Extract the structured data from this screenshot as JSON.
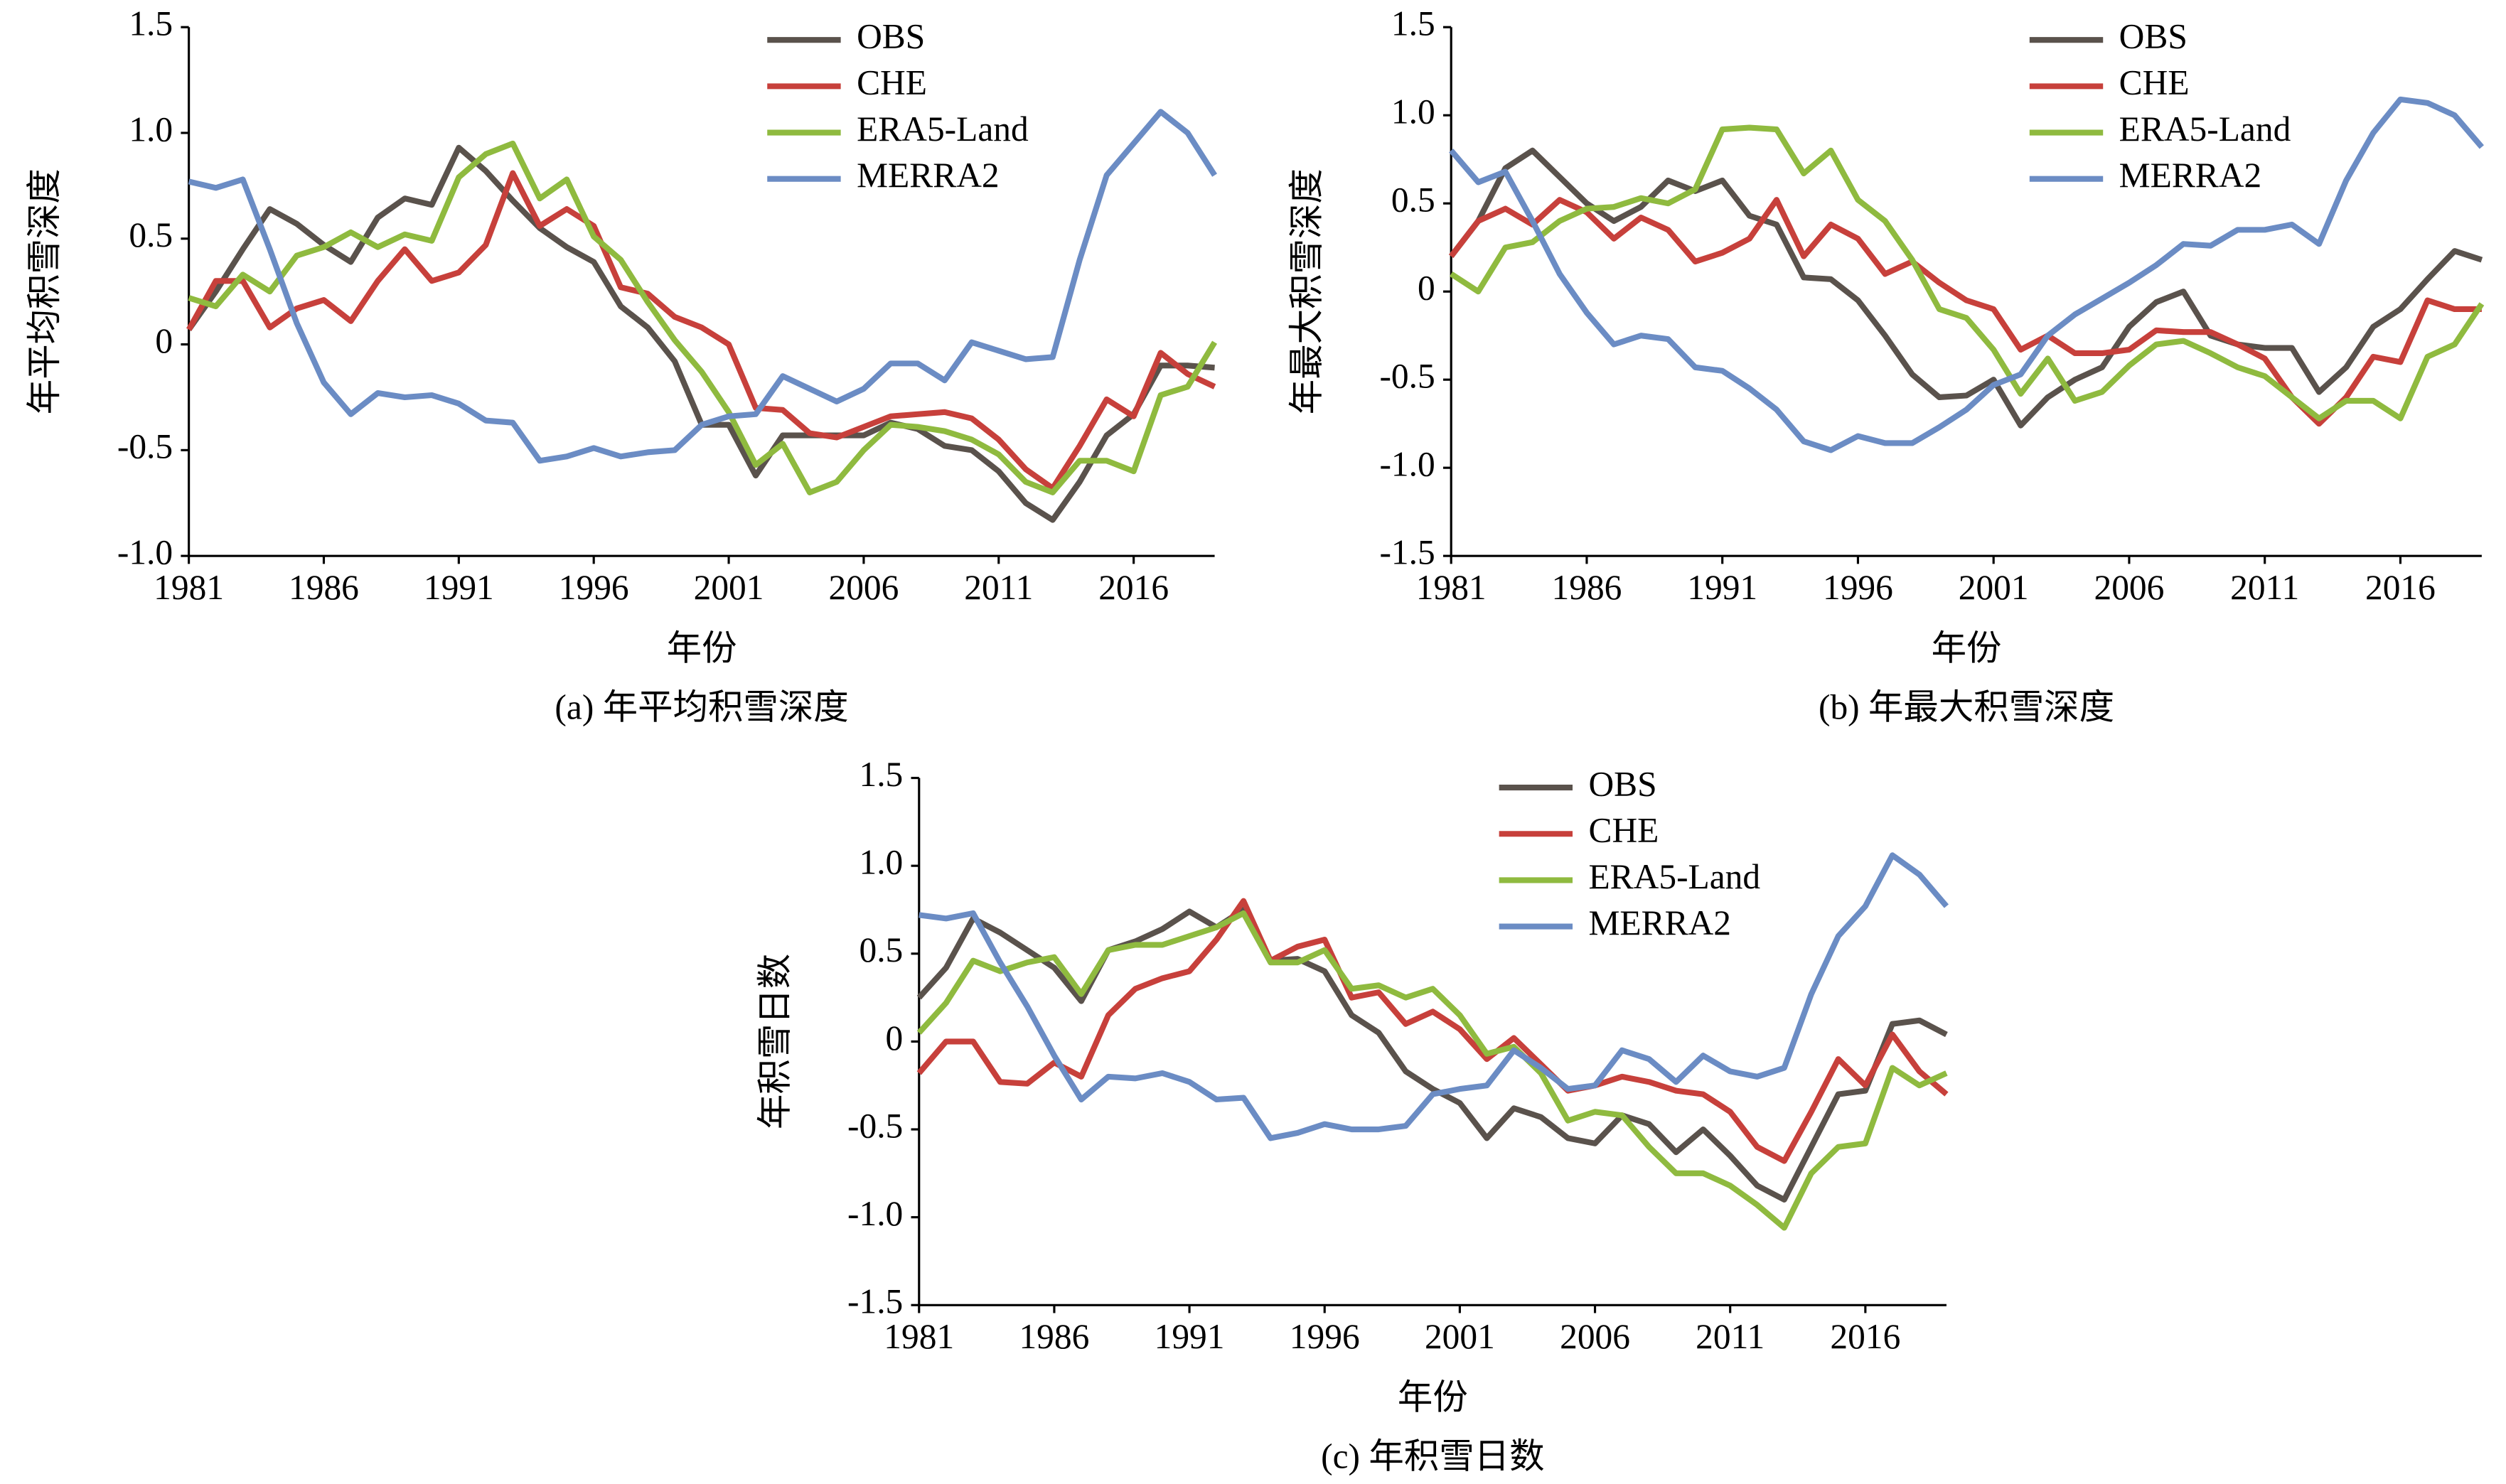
{
  "chart_data": [
    {
      "type": "line",
      "caption": "(a) 年平均积雪深度",
      "xlabel": "年份",
      "ylabel": "年平均积雪深度",
      "x": [
        1981,
        1982,
        1983,
        1984,
        1985,
        1986,
        1987,
        1988,
        1989,
        1990,
        1991,
        1992,
        1993,
        1994,
        1995,
        1996,
        1997,
        1998,
        1999,
        2000,
        2001,
        2002,
        2003,
        2004,
        2005,
        2006,
        2007,
        2008,
        2009,
        2010,
        2011,
        2012,
        2013,
        2014,
        2015,
        2016,
        2017,
        2018,
        2019
      ],
      "xlim": [
        1981,
        2019
      ],
      "xticks": [
        1981,
        1986,
        1991,
        1996,
        2001,
        2006,
        2011,
        2016
      ],
      "ylim": [
        -1,
        1.5
      ],
      "yticks": [
        {
          "value": -1,
          "label": "-1.0"
        },
        -0.5,
        0,
        0.5,
        {
          "value": 1,
          "label": "1.0"
        },
        1.5
      ],
      "series": [
        {
          "name": "OBS",
          "color": "#5a524c",
          "values": [
            0.07,
            0.25,
            0.45,
            0.64,
            0.57,
            0.47,
            0.39,
            0.6,
            0.69,
            0.66,
            0.93,
            0.82,
            0.68,
            0.55,
            0.46,
            0.39,
            0.18,
            0.08,
            -0.08,
            -0.38,
            -0.38,
            -0.62,
            -0.43,
            -0.43,
            -0.43,
            -0.43,
            -0.37,
            -0.4,
            -0.48,
            -0.5,
            -0.6,
            -0.75,
            -0.83,
            -0.65,
            -0.43,
            -0.33,
            -0.1,
            -0.1,
            -0.11
          ]
        },
        {
          "name": "CHE",
          "color": "#c7403b",
          "values": [
            0.07,
            0.3,
            0.3,
            0.08,
            0.17,
            0.21,
            0.11,
            0.3,
            0.45,
            0.3,
            0.34,
            0.47,
            0.81,
            0.56,
            0.64,
            0.56,
            0.27,
            0.24,
            0.13,
            0.08,
            0.0,
            -0.3,
            -0.31,
            -0.42,
            -0.44,
            -0.39,
            -0.34,
            -0.33,
            -0.32,
            -0.35,
            -0.45,
            -0.59,
            -0.68,
            -0.48,
            -0.26,
            -0.34,
            -0.04,
            -0.14,
            -0.2
          ]
        },
        {
          "name": "ERA5-Land",
          "color": "#8fba3f",
          "values": [
            0.22,
            0.18,
            0.33,
            0.25,
            0.42,
            0.46,
            0.53,
            0.46,
            0.52,
            0.49,
            0.79,
            0.9,
            0.95,
            0.69,
            0.78,
            0.51,
            0.4,
            0.2,
            0.02,
            -0.13,
            -0.32,
            -0.57,
            -0.47,
            -0.7,
            -0.65,
            -0.5,
            -0.38,
            -0.39,
            -0.41,
            -0.45,
            -0.52,
            -0.65,
            -0.7,
            -0.55,
            -0.55,
            -0.6,
            -0.24,
            -0.2,
            0.01
          ]
        },
        {
          "name": "MERRA2",
          "color": "#6b8cc4",
          "values": [
            0.77,
            0.74,
            0.78,
            0.45,
            0.1,
            -0.18,
            -0.33,
            -0.23,
            -0.25,
            -0.24,
            -0.28,
            -0.36,
            -0.37,
            -0.55,
            -0.53,
            -0.49,
            -0.53,
            -0.51,
            -0.5,
            -0.38,
            -0.34,
            -0.33,
            -0.15,
            -0.21,
            -0.27,
            -0.21,
            -0.09,
            -0.09,
            -0.17,
            0.01,
            -0.03,
            -0.07,
            -0.06,
            0.4,
            0.8,
            0.95,
            1.1,
            1.0,
            0.8
          ]
        }
      ]
    },
    {
      "type": "line",
      "caption": "(b) 年最大积雪深度",
      "xlabel": "年份",
      "ylabel": "年最大积雪深度",
      "x": [
        1981,
        1982,
        1983,
        1984,
        1985,
        1986,
        1987,
        1988,
        1989,
        1990,
        1991,
        1992,
        1993,
        1994,
        1995,
        1996,
        1997,
        1998,
        1999,
        2000,
        2001,
        2002,
        2003,
        2004,
        2005,
        2006,
        2007,
        2008,
        2009,
        2010,
        2011,
        2012,
        2013,
        2014,
        2015,
        2016,
        2017,
        2018,
        2019
      ],
      "xlim": [
        1981,
        2019
      ],
      "xticks": [
        1981,
        1986,
        1991,
        1996,
        2001,
        2006,
        2011,
        2016
      ],
      "ylim": [
        -1.5,
        1.5
      ],
      "yticks": [
        -1.5,
        {
          "value": -1,
          "label": "-1.0"
        },
        -0.5,
        0,
        0.5,
        {
          "value": 1,
          "label": "1.0"
        },
        1.5
      ],
      "series": [
        {
          "name": "OBS",
          "color": "#5a524c",
          "values": [
            0.2,
            0.4,
            0.7,
            0.8,
            0.65,
            0.5,
            0.4,
            0.48,
            0.63,
            0.57,
            0.63,
            0.43,
            0.38,
            0.08,
            0.07,
            -0.05,
            -0.25,
            -0.47,
            -0.6,
            -0.59,
            -0.5,
            -0.76,
            -0.6,
            -0.5,
            -0.43,
            -0.2,
            -0.06,
            0.0,
            -0.25,
            -0.3,
            -0.32,
            -0.32,
            -0.57,
            -0.43,
            -0.2,
            -0.1,
            0.07,
            0.23,
            0.18
          ]
        },
        {
          "name": "CHE",
          "color": "#c7403b",
          "values": [
            0.2,
            0.4,
            0.47,
            0.38,
            0.52,
            0.45,
            0.3,
            0.42,
            0.35,
            0.17,
            0.22,
            0.3,
            0.52,
            0.2,
            0.38,
            0.3,
            0.1,
            0.17,
            0.05,
            -0.05,
            -0.1,
            -0.33,
            -0.25,
            -0.35,
            -0.35,
            -0.33,
            -0.22,
            -0.23,
            -0.23,
            -0.3,
            -0.38,
            -0.6,
            -0.75,
            -0.6,
            -0.37,
            -0.4,
            -0.05,
            -0.1,
            -0.1
          ]
        },
        {
          "name": "ERA5-Land",
          "color": "#8fba3f",
          "values": [
            0.1,
            0.0,
            0.25,
            0.28,
            0.4,
            0.47,
            0.48,
            0.53,
            0.5,
            0.58,
            0.92,
            0.93,
            0.92,
            0.67,
            0.8,
            0.52,
            0.4,
            0.18,
            -0.1,
            -0.15,
            -0.33,
            -0.58,
            -0.38,
            -0.62,
            -0.57,
            -0.42,
            -0.3,
            -0.28,
            -0.35,
            -0.43,
            -0.48,
            -0.6,
            -0.72,
            -0.62,
            -0.62,
            -0.72,
            -0.37,
            -0.3,
            -0.07
          ]
        },
        {
          "name": "MERRA2",
          "color": "#6b8cc4",
          "values": [
            0.8,
            0.62,
            0.68,
            0.4,
            0.1,
            -0.12,
            -0.3,
            -0.25,
            -0.27,
            -0.43,
            -0.45,
            -0.55,
            -0.67,
            -0.85,
            -0.9,
            -0.82,
            -0.86,
            -0.86,
            -0.77,
            -0.67,
            -0.53,
            -0.47,
            -0.25,
            -0.13,
            -0.04,
            0.05,
            0.15,
            0.27,
            0.26,
            0.35,
            0.35,
            0.38,
            0.27,
            0.63,
            0.9,
            1.09,
            1.07,
            1.0,
            0.82
          ]
        }
      ]
    },
    {
      "type": "line",
      "caption": "(c) 年积雪日数",
      "xlabel": "年份",
      "ylabel": "年积雪日数",
      "x": [
        1981,
        1982,
        1983,
        1984,
        1985,
        1986,
        1987,
        1988,
        1989,
        1990,
        1991,
        1992,
        1993,
        1994,
        1995,
        1996,
        1997,
        1998,
        1999,
        2000,
        2001,
        2002,
        2003,
        2004,
        2005,
        2006,
        2007,
        2008,
        2009,
        2010,
        2011,
        2012,
        2013,
        2014,
        2015,
        2016,
        2017,
        2018,
        2019
      ],
      "xlim": [
        1981,
        2019
      ],
      "xticks": [
        1981,
        1986,
        1991,
        1996,
        2001,
        2006,
        2011,
        2016
      ],
      "ylim": [
        -1.5,
        1.5
      ],
      "yticks": [
        -1.5,
        {
          "value": -1,
          "label": "-1.0"
        },
        -0.5,
        0,
        0.5,
        {
          "value": 1,
          "label": "1.0"
        },
        1.5
      ],
      "series": [
        {
          "name": "OBS",
          "color": "#5a524c",
          "values": [
            0.25,
            0.42,
            0.7,
            0.62,
            0.52,
            0.42,
            0.23,
            0.52,
            0.57,
            0.64,
            0.74,
            0.65,
            0.75,
            0.46,
            0.47,
            0.4,
            0.15,
            0.05,
            -0.17,
            -0.27,
            -0.35,
            -0.55,
            -0.38,
            -0.43,
            -0.55,
            -0.58,
            -0.42,
            -0.47,
            -0.63,
            -0.5,
            -0.65,
            -0.82,
            -0.9,
            -0.6,
            -0.3,
            -0.28,
            0.1,
            0.12,
            0.04
          ]
        },
        {
          "name": "CHE",
          "color": "#c7403b",
          "values": [
            -0.18,
            0.0,
            0.0,
            -0.23,
            -0.24,
            -0.12,
            -0.2,
            0.15,
            0.3,
            0.36,
            0.4,
            0.58,
            0.8,
            0.46,
            0.54,
            0.58,
            0.25,
            0.28,
            0.1,
            0.17,
            0.07,
            -0.1,
            0.02,
            -0.13,
            -0.28,
            -0.25,
            -0.2,
            -0.23,
            -0.28,
            -0.3,
            -0.4,
            -0.6,
            -0.68,
            -0.4,
            -0.1,
            -0.25,
            0.04,
            -0.17,
            -0.3
          ]
        },
        {
          "name": "ERA5-Land",
          "color": "#8fba3f",
          "values": [
            0.05,
            0.22,
            0.46,
            0.4,
            0.45,
            0.48,
            0.27,
            0.52,
            0.55,
            0.55,
            0.6,
            0.65,
            0.73,
            0.45,
            0.45,
            0.52,
            0.3,
            0.32,
            0.25,
            0.3,
            0.15,
            -0.07,
            -0.03,
            -0.18,
            -0.45,
            -0.4,
            -0.42,
            -0.6,
            -0.75,
            -0.75,
            -0.82,
            -0.93,
            -1.06,
            -0.75,
            -0.6,
            -0.58,
            -0.15,
            -0.25,
            -0.18
          ]
        },
        {
          "name": "MERRA2",
          "color": "#6b8cc4",
          "values": [
            0.72,
            0.7,
            0.73,
            0.45,
            0.2,
            -0.08,
            -0.33,
            -0.2,
            -0.21,
            -0.18,
            -0.23,
            -0.33,
            -0.32,
            -0.55,
            -0.52,
            -0.47,
            -0.5,
            -0.5,
            -0.48,
            -0.3,
            -0.27,
            -0.25,
            -0.05,
            -0.15,
            -0.27,
            -0.25,
            -0.05,
            -0.1,
            -0.23,
            -0.08,
            -0.17,
            -0.2,
            -0.15,
            0.27,
            0.6,
            0.77,
            1.06,
            0.95,
            0.77
          ]
        }
      ]
    }
  ]
}
